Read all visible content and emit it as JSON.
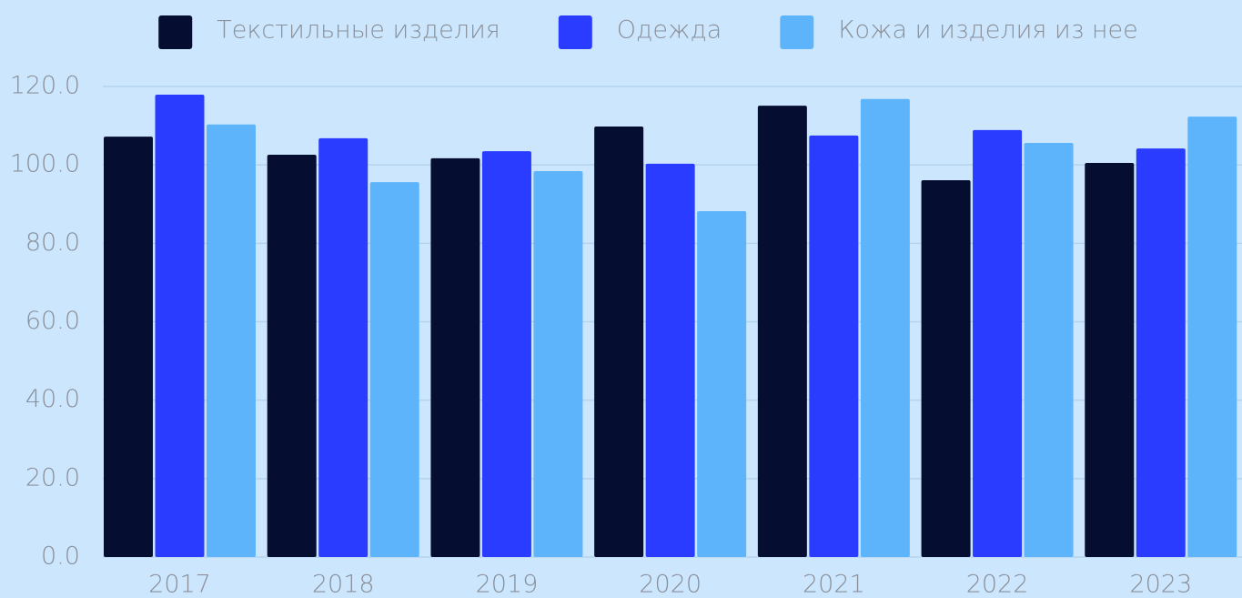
{
  "chart_data": {
    "type": "bar",
    "categories": [
      "2017",
      "2018",
      "2019",
      "2020",
      "2021",
      "2022",
      "2023"
    ],
    "series": [
      {
        "name": "Текстильные изделия",
        "color": "#050d30",
        "values": [
          107.2,
          102.6,
          101.7,
          109.8,
          115.1,
          96.1,
          100.5
        ]
      },
      {
        "name": "Одежда",
        "color": "#2a3cff",
        "values": [
          117.9,
          106.8,
          103.5,
          100.3,
          107.5,
          108.9,
          104.2
        ]
      },
      {
        "name": "Кожа и изделия из нее",
        "color": "#5db4fb",
        "values": [
          110.3,
          95.6,
          98.4,
          88.2,
          116.8,
          105.6,
          112.3
        ]
      }
    ],
    "ylim": [
      0,
      120
    ],
    "yticks": [
      {
        "value": 0,
        "label": "0.0"
      },
      {
        "value": 20,
        "label": "20.0"
      },
      {
        "value": 40,
        "label": "40.0"
      },
      {
        "value": 60,
        "label": "60.0"
      },
      {
        "value": 80,
        "label": "80.0"
      },
      {
        "value": 100,
        "label": "100.0"
      },
      {
        "value": 120,
        "label": "120.0"
      }
    ],
    "grid": true,
    "legend": "top"
  }
}
